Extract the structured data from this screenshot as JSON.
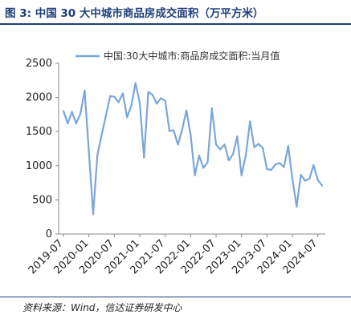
{
  "figure": {
    "title": "图 3:  中国 30 大中城市商品房成交面积（万平方米）",
    "source": "资料来源：Wind，信达证券研发中心"
  },
  "colors": {
    "series": "#7aa6d8",
    "title": "#1f3f7a",
    "axis": "#888888"
  },
  "chart_data": {
    "type": "line",
    "title": "",
    "xlabel": "",
    "ylabel": "",
    "ylim": [
      0,
      2500
    ],
    "yticks": [
      0,
      500,
      1000,
      1500,
      2000,
      2500
    ],
    "xticks": [
      "2019-07",
      "2020-01",
      "2020-07",
      "2021-01",
      "2021-07",
      "2022-01",
      "2022-07",
      "2023-01",
      "2023-07",
      "2024-01",
      "2024-07"
    ],
    "grid": false,
    "legend": "top",
    "x": [
      "2019-07",
      "2019-08",
      "2019-09",
      "2019-10",
      "2019-11",
      "2019-12",
      "2020-01",
      "2020-02",
      "2020-03",
      "2020-04",
      "2020-05",
      "2020-06",
      "2020-07",
      "2020-08",
      "2020-09",
      "2020-10",
      "2020-11",
      "2020-12",
      "2021-01",
      "2021-02",
      "2021-03",
      "2021-04",
      "2021-05",
      "2021-06",
      "2021-07",
      "2021-08",
      "2021-09",
      "2021-10",
      "2021-11",
      "2021-12",
      "2022-01",
      "2022-02",
      "2022-03",
      "2022-04",
      "2022-05",
      "2022-06",
      "2022-07",
      "2022-08",
      "2022-09",
      "2022-10",
      "2022-11",
      "2022-12",
      "2023-01",
      "2023-02",
      "2023-03",
      "2023-04",
      "2023-05",
      "2023-06",
      "2023-07",
      "2023-08",
      "2023-09",
      "2023-10",
      "2023-11",
      "2023-12",
      "2024-01",
      "2024-02",
      "2024-03",
      "2024-04",
      "2024-05",
      "2024-06",
      "2024-07",
      "2024-08"
    ],
    "series": [
      {
        "name": "中国:30大中城市:商品房成交面积:当月值",
        "values": [
          1800,
          1620,
          1790,
          1620,
          1760,
          2100,
          1200,
          290,
          1150,
          1450,
          1730,
          2020,
          2010,
          1930,
          2060,
          1710,
          1880,
          2210,
          1920,
          1120,
          2080,
          2040,
          1910,
          1990,
          1950,
          1510,
          1520,
          1310,
          1530,
          1810,
          1450,
          860,
          1150,
          970,
          1050,
          1840,
          1310,
          1240,
          1310,
          1080,
          1170,
          1430,
          860,
          1150,
          1650,
          1270,
          1320,
          1260,
          950,
          940,
          1020,
          1040,
          980,
          1290,
          810,
          400,
          870,
          780,
          810,
          1010,
          790,
          710
        ]
      }
    ]
  }
}
